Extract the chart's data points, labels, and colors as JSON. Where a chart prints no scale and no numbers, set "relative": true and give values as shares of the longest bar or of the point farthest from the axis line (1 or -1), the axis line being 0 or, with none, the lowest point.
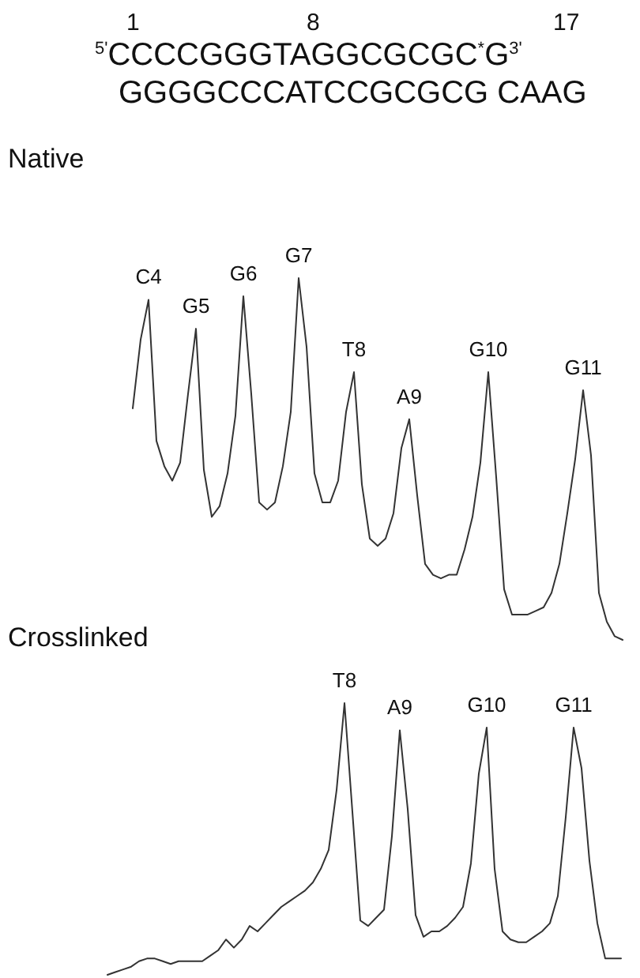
{
  "chart_data": [
    {
      "type": "other",
      "annotations": [
        "1",
        "8",
        "17",
        "$^{5'}$CCCCGGGTAGGCGCGC$^{*}$G$^{3'}$",
        "GGGGCCCATCCGCGCG CAAG"
      ]
    },
    {
      "type": "line",
      "title": "Native",
      "relative": true,
      "color": "#333333",
      "categories": [
        null,
        null,
        "C4",
        null,
        null,
        null,
        null,
        null,
        "G5",
        null,
        null,
        null,
        null,
        null,
        "G6",
        null,
        null,
        null,
        null,
        null,
        null,
        "G7",
        null,
        null,
        null,
        null,
        null,
        null,
        "T8",
        null,
        null,
        null,
        null,
        null,
        null,
        "A9",
        null,
        null,
        null,
        null,
        null,
        null,
        null,
        null,
        null,
        "G10",
        null,
        null,
        null,
        null,
        null,
        null,
        null,
        null,
        null,
        null,
        null,
        "G11",
        null,
        null,
        null,
        null,
        null
      ],
      "values": [
        0.64,
        0.83,
        0.94,
        0.55,
        0.48,
        0.44,
        0.49,
        0.68,
        0.86,
        0.47,
        0.34,
        0.37,
        0.46,
        0.62,
        0.95,
        0.68,
        0.38,
        0.36,
        0.38,
        0.48,
        0.63,
        1.0,
        0.81,
        0.46,
        0.38,
        0.38,
        0.44,
        0.63,
        0.74,
        0.43,
        0.28,
        0.26,
        0.28,
        0.35,
        0.53,
        0.61,
        0.4,
        0.21,
        0.18,
        0.17,
        0.18,
        0.18,
        0.25,
        0.34,
        0.49,
        0.74,
        0.45,
        0.14,
        0.07,
        0.07,
        0.07,
        0.08,
        0.09,
        0.13,
        0.21,
        0.35,
        0.5,
        0.69,
        0.51,
        0.13,
        0.05,
        0.01,
        0.0
      ]
    },
    {
      "type": "line",
      "title": "Crosslinked",
      "relative": true,
      "color": "#333333",
      "categories": [
        null,
        null,
        null,
        null,
        null,
        null,
        null,
        null,
        null,
        null,
        null,
        null,
        null,
        null,
        null,
        null,
        null,
        null,
        null,
        null,
        null,
        null,
        null,
        null,
        null,
        null,
        null,
        null,
        null,
        null,
        "T8",
        null,
        null,
        null,
        null,
        null,
        null,
        "A9",
        null,
        null,
        null,
        null,
        null,
        null,
        null,
        null,
        null,
        null,
        "G10",
        null,
        null,
        null,
        null,
        null,
        null,
        null,
        null,
        null,
        null,
        "G11",
        null,
        null,
        null,
        null,
        null,
        null
      ],
      "values": [
        0.0,
        0.01,
        0.02,
        0.03,
        0.05,
        0.06,
        0.06,
        0.05,
        0.04,
        0.05,
        0.05,
        0.05,
        0.05,
        0.07,
        0.09,
        0.13,
        0.1,
        0.13,
        0.18,
        0.16,
        0.19,
        0.22,
        0.25,
        0.27,
        0.29,
        0.31,
        0.34,
        0.39,
        0.46,
        0.68,
        1.0,
        0.6,
        0.2,
        0.18,
        0.21,
        0.24,
        0.51,
        0.9,
        0.61,
        0.22,
        0.14,
        0.16,
        0.16,
        0.18,
        0.21,
        0.25,
        0.41,
        0.74,
        0.91,
        0.39,
        0.16,
        0.13,
        0.12,
        0.12,
        0.14,
        0.16,
        0.19,
        0.29,
        0.58,
        0.91,
        0.76,
        0.42,
        0.19,
        0.06,
        0.06,
        0.06
      ]
    }
  ]
}
